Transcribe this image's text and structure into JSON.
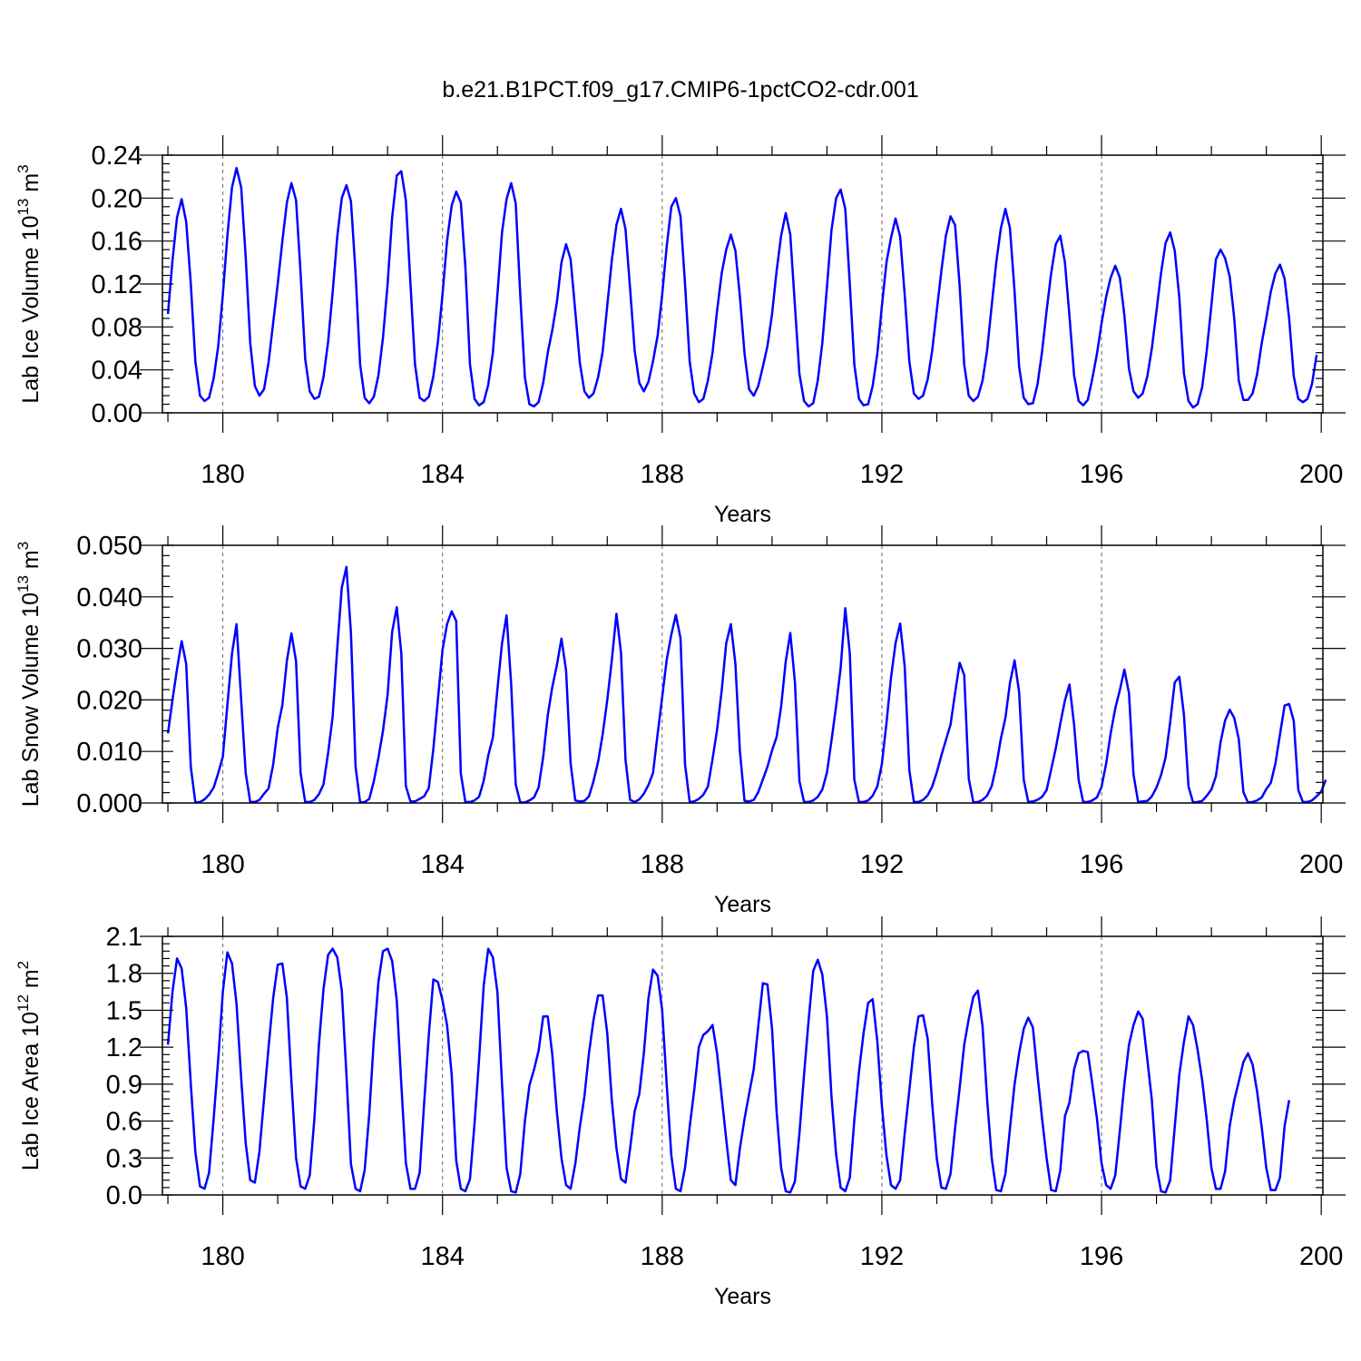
{
  "figure_title": "b.e21.B1PCT.f09_g17.CMIP6-1pctCO2-cdr.001",
  "colors": {
    "line": "#0000ff",
    "axes": "#000000",
    "grid": "#666666"
  },
  "chart_data": [
    {
      "type": "line",
      "ylabel": "Lab Ice Volume 10",
      "ylabel_exp": "13",
      "ylabel_unit": " m",
      "ylabel_unit_exp": "3",
      "xlabel": "Years",
      "xlim": [
        178.9,
        200.03
      ],
      "ylim": [
        0,
        0.24
      ],
      "xticks": [
        180,
        184,
        188,
        192,
        196,
        200
      ],
      "xtick_labels": [
        "180",
        "184",
        "188",
        "192",
        "196",
        "200"
      ],
      "yticks": [
        0,
        0.04,
        0.08,
        0.12,
        0.16,
        0.2,
        0.24
      ],
      "ytick_labels": [
        "0.00",
        "0.04",
        "0.08",
        "0.12",
        "0.16",
        "0.20",
        "0.24"
      ],
      "grid": "dashed vertical at major x ticks",
      "series": [
        {
          "x_start": 179.0,
          "x_step": 0.08333,
          "values": [
            0.092,
            0.142,
            0.182,
            0.199,
            0.178,
            0.12,
            0.048,
            0.016,
            0.011,
            0.014,
            0.032,
            0.062,
            0.11,
            0.165,
            0.21,
            0.228,
            0.21,
            0.145,
            0.065,
            0.025,
            0.016,
            0.022,
            0.047,
            0.084,
            0.12,
            0.16,
            0.196,
            0.214,
            0.198,
            0.13,
            0.05,
            0.02,
            0.013,
            0.015,
            0.033,
            0.066,
            0.112,
            0.164,
            0.2,
            0.212,
            0.197,
            0.13,
            0.045,
            0.014,
            0.009,
            0.015,
            0.035,
            0.07,
            0.12,
            0.182,
            0.221,
            0.225,
            0.198,
            0.12,
            0.045,
            0.014,
            0.011,
            0.015,
            0.034,
            0.066,
            0.11,
            0.16,
            0.193,
            0.206,
            0.196,
            0.136,
            0.045,
            0.013,
            0.007,
            0.01,
            0.026,
            0.056,
            0.11,
            0.168,
            0.199,
            0.214,
            0.195,
            0.11,
            0.033,
            0.008,
            0.006,
            0.01,
            0.028,
            0.056,
            0.077,
            0.103,
            0.14,
            0.157,
            0.143,
            0.095,
            0.047,
            0.02,
            0.014,
            0.018,
            0.033,
            0.057,
            0.1,
            0.142,
            0.175,
            0.19,
            0.171,
            0.115,
            0.058,
            0.028,
            0.02,
            0.029,
            0.048,
            0.072,
            0.11,
            0.155,
            0.192,
            0.2,
            0.183,
            0.12,
            0.048,
            0.018,
            0.01,
            0.013,
            0.03,
            0.056,
            0.095,
            0.13,
            0.152,
            0.166,
            0.151,
            0.108,
            0.055,
            0.022,
            0.016,
            0.025,
            0.043,
            0.062,
            0.092,
            0.132,
            0.165,
            0.186,
            0.166,
            0.1,
            0.036,
            0.011,
            0.006,
            0.009,
            0.03,
            0.065,
            0.117,
            0.17,
            0.2,
            0.208,
            0.19,
            0.12,
            0.045,
            0.013,
            0.007,
            0.008,
            0.025,
            0.055,
            0.099,
            0.14,
            0.163,
            0.181,
            0.164,
            0.11,
            0.048,
            0.018,
            0.013,
            0.016,
            0.031,
            0.058,
            0.095,
            0.132,
            0.165,
            0.183,
            0.175,
            0.118,
            0.045,
            0.016,
            0.011,
            0.015,
            0.03,
            0.058,
            0.1,
            0.14,
            0.172,
            0.19,
            0.172,
            0.113,
            0.043,
            0.014,
            0.008,
            0.009,
            0.026,
            0.057,
            0.095,
            0.13,
            0.157,
            0.165,
            0.14,
            0.09,
            0.035,
            0.011,
            0.007,
            0.012,
            0.032,
            0.055,
            0.083,
            0.108,
            0.126,
            0.137,
            0.126,
            0.091,
            0.041,
            0.02,
            0.014,
            0.018,
            0.034,
            0.06,
            0.095,
            0.13,
            0.158,
            0.168,
            0.151,
            0.107,
            0.037,
            0.011,
            0.005,
            0.008,
            0.024,
            0.058,
            0.1,
            0.143,
            0.152,
            0.144,
            0.127,
            0.088,
            0.03,
            0.012,
            0.012,
            0.018,
            0.036,
            0.065,
            0.088,
            0.113,
            0.13,
            0.138,
            0.125,
            0.088,
            0.034,
            0.013,
            0.01,
            0.013,
            0.027,
            0.054
          ]
        }
      ]
    },
    {
      "type": "line",
      "ylabel": "Lab Snow Volume 10",
      "ylabel_exp": "13",
      "ylabel_unit": " m",
      "ylabel_unit_exp": "3",
      "xlabel": "Years",
      "xlim": [
        178.9,
        200.03
      ],
      "ylim": [
        0,
        0.05
      ],
      "xticks": [
        180,
        184,
        188,
        192,
        196,
        200
      ],
      "xtick_labels": [
        "180",
        "184",
        "188",
        "192",
        "196",
        "200"
      ],
      "yticks": [
        0,
        0.01,
        0.02,
        0.03,
        0.04,
        0.05
      ],
      "ytick_labels": [
        "0.000",
        "0.010",
        "0.020",
        "0.030",
        "0.040",
        "0.050"
      ],
      "grid": "dashed vertical at major x ticks",
      "series": [
        {
          "x_start": 179.0,
          "x_step": 0.08333,
          "values": [
            0.0135,
            0.02,
            0.026,
            0.0314,
            0.027,
            0.007,
            0.0001,
            0.0002,
            0.0007,
            0.0016,
            0.003,
            0.0058,
            0.009,
            0.019,
            0.029,
            0.0347,
            0.02,
            0.0058,
            0.0002,
            0.0002,
            0.0006,
            0.0018,
            0.0028,
            0.0075,
            0.0146,
            0.019,
            0.0276,
            0.0329,
            0.0275,
            0.0058,
            0.0002,
            0.0002,
            0.0006,
            0.0017,
            0.0036,
            0.0097,
            0.0167,
            0.03,
            0.0418,
            0.0458,
            0.033,
            0.007,
            0.0001,
            0.0002,
            0.0008,
            0.0042,
            0.0088,
            0.014,
            0.021,
            0.0332,
            0.038,
            0.029,
            0.0033,
            0.0003,
            0.0003,
            0.0008,
            0.0013,
            0.0029,
            0.0105,
            0.02,
            0.0297,
            0.0347,
            0.0372,
            0.0353,
            0.0057,
            0.0002,
            0.0002,
            0.0005,
            0.0012,
            0.0043,
            0.0092,
            0.0127,
            0.022,
            0.031,
            0.0364,
            0.023,
            0.0036,
            0.0001,
            0.0001,
            0.0005,
            0.0011,
            0.003,
            0.009,
            0.017,
            0.0225,
            0.0268,
            0.0319,
            0.0257,
            0.0077,
            0.0005,
            0.0003,
            0.0004,
            0.0013,
            0.0042,
            0.008,
            0.0133,
            0.02,
            0.0277,
            0.0367,
            0.0292,
            0.0084,
            0.0006,
            0.0002,
            0.0007,
            0.0018,
            0.0035,
            0.0058,
            0.0134,
            0.0205,
            0.0278,
            0.0327,
            0.0365,
            0.032,
            0.0075,
            0.0002,
            0.0003,
            0.0008,
            0.0016,
            0.0032,
            0.0085,
            0.0142,
            0.0218,
            0.031,
            0.0347,
            0.027,
            0.01,
            0.0004,
            0.0003,
            0.0006,
            0.0021,
            0.0046,
            0.007,
            0.0102,
            0.0128,
            0.0187,
            0.0275,
            0.033,
            0.0235,
            0.0042,
            0.0002,
            0.0002,
            0.0005,
            0.0012,
            0.0026,
            0.0059,
            0.0121,
            0.0188,
            0.0262,
            0.0378,
            0.029,
            0.0045,
            0.0002,
            0.0002,
            0.0005,
            0.0014,
            0.0032,
            0.0075,
            0.0155,
            0.0243,
            0.031,
            0.0348,
            0.0265,
            0.0064,
            0.0002,
            0.0002,
            0.0006,
            0.0015,
            0.0032,
            0.0059,
            0.0092,
            0.0122,
            0.0152,
            0.0213,
            0.0272,
            0.0248,
            0.0047,
            0.0001,
            0.0002,
            0.0006,
            0.0014,
            0.0033,
            0.0072,
            0.0125,
            0.0165,
            0.0233,
            0.0277,
            0.0215,
            0.0045,
            0.0002,
            0.0003,
            0.0006,
            0.0012,
            0.0025,
            0.0065,
            0.0106,
            0.0154,
            0.0199,
            0.023,
            0.0152,
            0.0045,
            0.0002,
            0.0002,
            0.0005,
            0.0011,
            0.0031,
            0.0076,
            0.0135,
            0.0184,
            0.0219,
            0.0259,
            0.0213,
            0.0055,
            0.0002,
            0.0003,
            0.0004,
            0.0013,
            0.003,
            0.0054,
            0.0088,
            0.0157,
            0.0234,
            0.0245,
            0.0172,
            0.0032,
            0.0001,
            0.0002,
            0.0004,
            0.0014,
            0.0026,
            0.0052,
            0.0118,
            0.016,
            0.0181,
            0.0165,
            0.0124,
            0.0021,
            0.0001,
            0.0002,
            0.0005,
            0.0011,
            0.0027,
            0.0039,
            0.0077,
            0.0133,
            0.0189,
            0.0192,
            0.0159,
            0.0025,
            0.0002,
            0.0002,
            0.0005,
            0.0013,
            0.0022,
            0.0045
          ]
        }
      ]
    },
    {
      "type": "line",
      "ylabel": "Lab Ice Area 10",
      "ylabel_exp": "12",
      "ylabel_unit": " m",
      "ylabel_unit_exp": "2",
      "xlabel": "Years",
      "xlim": [
        178.9,
        200.03
      ],
      "ylim": [
        0,
        2.1
      ],
      "xticks": [
        180,
        184,
        188,
        192,
        196,
        200
      ],
      "xtick_labels": [
        "180",
        "184",
        "188",
        "192",
        "196",
        "200"
      ],
      "yticks": [
        0,
        0.3,
        0.6,
        0.9,
        1.2,
        1.5,
        1.8,
        2.1
      ],
      "ytick_labels": [
        "0.0",
        "0.3",
        "0.6",
        "0.9",
        "1.2",
        "1.5",
        "1.8",
        "2.1"
      ],
      "grid": "dashed vertical at major x ticks",
      "series": [
        {
          "x_start": 179.0,
          "x_step": 0.08333,
          "values": [
            1.22,
            1.65,
            1.92,
            1.84,
            1.52,
            0.9,
            0.35,
            0.07,
            0.05,
            0.18,
            0.62,
            1.1,
            1.65,
            1.97,
            1.88,
            1.55,
            0.95,
            0.42,
            0.12,
            0.1,
            0.35,
            0.78,
            1.2,
            1.6,
            1.87,
            1.88,
            1.6,
            0.92,
            0.3,
            0.07,
            0.05,
            0.16,
            0.62,
            1.22,
            1.67,
            1.95,
            2.0,
            1.93,
            1.66,
            0.98,
            0.25,
            0.05,
            0.03,
            0.2,
            0.66,
            1.26,
            1.73,
            1.98,
            2.0,
            1.9,
            1.58,
            0.9,
            0.26,
            0.05,
            0.05,
            0.18,
            0.75,
            1.3,
            1.75,
            1.73,
            1.58,
            1.38,
            0.98,
            0.28,
            0.05,
            0.03,
            0.13,
            0.58,
            1.1,
            1.7,
            2.0,
            1.93,
            1.65,
            0.9,
            0.22,
            0.03,
            0.02,
            0.17,
            0.6,
            0.89,
            1.02,
            1.17,
            1.45,
            1.45,
            1.14,
            0.67,
            0.3,
            0.08,
            0.05,
            0.25,
            0.55,
            0.8,
            1.15,
            1.42,
            1.62,
            1.62,
            1.31,
            0.77,
            0.38,
            0.13,
            0.1,
            0.38,
            0.68,
            0.82,
            1.15,
            1.6,
            1.83,
            1.78,
            1.5,
            0.9,
            0.32,
            0.05,
            0.03,
            0.22,
            0.55,
            0.85,
            1.2,
            1.3,
            1.33,
            1.38,
            1.15,
            0.8,
            0.45,
            0.12,
            0.08,
            0.38,
            0.62,
            0.82,
            1.02,
            1.37,
            1.72,
            1.71,
            1.35,
            0.68,
            0.22,
            0.03,
            0.02,
            0.11,
            0.5,
            0.98,
            1.42,
            1.82,
            1.91,
            1.79,
            1.45,
            0.8,
            0.33,
            0.06,
            0.03,
            0.14,
            0.61,
            1.0,
            1.31,
            1.56,
            1.59,
            1.25,
            0.73,
            0.32,
            0.08,
            0.05,
            0.12,
            0.5,
            0.85,
            1.2,
            1.45,
            1.46,
            1.27,
            0.74,
            0.3,
            0.06,
            0.05,
            0.17,
            0.54,
            0.87,
            1.22,
            1.43,
            1.61,
            1.66,
            1.37,
            0.78,
            0.3,
            0.04,
            0.03,
            0.17,
            0.54,
            0.9,
            1.15,
            1.35,
            1.44,
            1.36,
            0.98,
            0.62,
            0.3,
            0.04,
            0.03,
            0.2,
            0.64,
            0.75,
            1.02,
            1.15,
            1.17,
            1.16,
            0.9,
            0.62,
            0.26,
            0.08,
            0.05,
            0.16,
            0.52,
            0.9,
            1.22,
            1.38,
            1.49,
            1.43,
            1.1,
            0.77,
            0.23,
            0.03,
            0.02,
            0.12,
            0.55,
            0.98,
            1.24,
            1.45,
            1.38,
            1.18,
            0.93,
            0.61,
            0.22,
            0.05,
            0.05,
            0.19,
            0.56,
            0.77,
            0.92,
            1.08,
            1.15,
            1.06,
            0.84,
            0.55,
            0.22,
            0.04,
            0.04,
            0.14,
            0.56,
            0.77
          ]
        }
      ]
    }
  ]
}
